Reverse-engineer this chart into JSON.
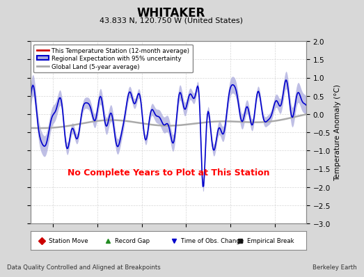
{
  "title": "WHITAKER",
  "subtitle": "43.833 N, 120.750 W (United States)",
  "ylabel": "Temperature Anomaly (°C)",
  "xlabel_note": "Data Quality Controlled and Aligned at Breakpoints",
  "credit": "Berkeley Earth",
  "xlim": [
    1897.5,
    1928.5
  ],
  "ylim": [
    -3,
    2
  ],
  "yticks": [
    -3,
    -2.5,
    -2,
    -1.5,
    -1,
    -0.5,
    0,
    0.5,
    1,
    1.5,
    2
  ],
  "xticks": [
    1900,
    1905,
    1910,
    1915,
    1920,
    1925
  ],
  "no_data_text": "No Complete Years to Plot at This Station",
  "bg_color": "#d8d8d8",
  "plot_bg_color": "#ffffff",
  "regional_line_color": "#0000cc",
  "regional_fill_color": "#aaaadd",
  "station_line_color": "#cc0000",
  "global_line_color": "#aaaaaa",
  "legend_label_0": "This Temperature Station (12-month average)",
  "legend_label_1": "Regional Expectation with 95% uncertainty",
  "legend_label_2": "Global Land (5-year average)",
  "bottom_legend": [
    {
      "label": "Station Move",
      "color": "#cc0000",
      "marker": "D"
    },
    {
      "label": "Record Gap",
      "color": "#228B22",
      "marker": "^"
    },
    {
      "label": "Time of Obs. Change",
      "color": "#0000cc",
      "marker": "v"
    },
    {
      "label": "Empirical Break",
      "color": "#222222",
      "marker": "s"
    }
  ],
  "seed": 42
}
